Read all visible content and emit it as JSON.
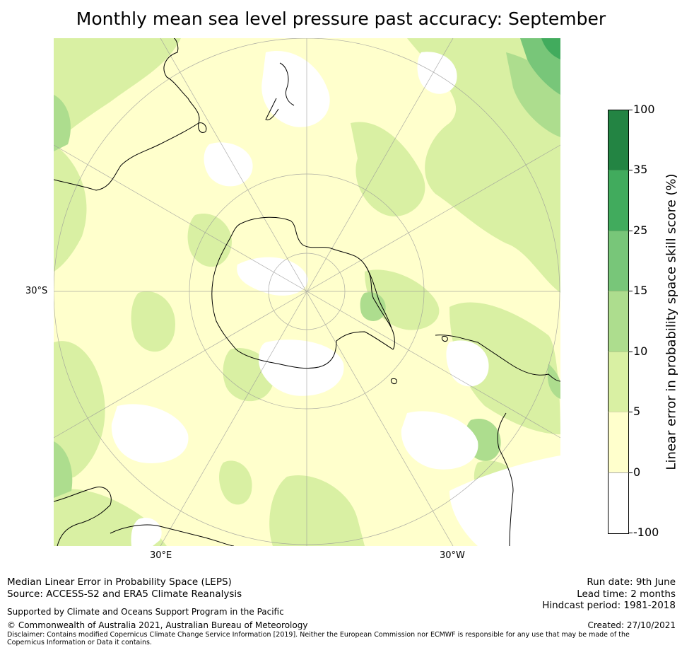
{
  "title": "Monthly mean sea level pressure past accuracy: September",
  "map": {
    "projection": "south-polar-stereographic",
    "labels": {
      "lat": "30°S",
      "lon_east": "30°E",
      "lon_west": "30°W"
    },
    "colors": {
      "ocean_low": "#ffffcc",
      "neutral": "#ffffff",
      "lvl_5_10": "#d9f0a3",
      "lvl_10_15": "#addd8e",
      "lvl_15_25": "#78c679",
      "lvl_25_35": "#41ab5d",
      "lvl_35_100": "#238443",
      "coast": "#000000",
      "grid": "#999999"
    }
  },
  "colorbar": {
    "title": "Linear error in probability space skill score (%)",
    "ticks": [
      "100",
      "35",
      "25",
      "15",
      "10",
      "5",
      "0",
      "-100"
    ],
    "segments": [
      {
        "range": "35-100",
        "color": "#238443"
      },
      {
        "range": "25-35",
        "color": "#41ab5d"
      },
      {
        "range": "15-25",
        "color": "#78c679"
      },
      {
        "range": "10-15",
        "color": "#addd8e"
      },
      {
        "range": "5-10",
        "color": "#d9f0a3"
      },
      {
        "range": "0-5",
        "color": "#ffffcc"
      },
      {
        "range": "-100-0",
        "color": "#ffffff"
      }
    ]
  },
  "footer": {
    "method": "Median Linear Error in Probability Space (LEPS)",
    "source": "Source: ACCESS-S2 and ERA5 Climate Reanalysis",
    "support": "Supported by Climate and Oceans Support Program in the Pacific",
    "copyright": "© Commonwealth of Australia 2021, Australian Bureau of Meteorology",
    "disclaimer": "Disclaimer: Contains modified Copernicus Climate Change Service Information [2019]. Neither the European Commission nor ECMWF is responsible for any use that may be made of the Copernicus Information or Data it contains.",
    "run_date": "Run date: 9th June",
    "lead_time": "Lead time: 2 months",
    "hindcast": "Hindcast period: 1981-2018",
    "created": "Created: 27/10/2021"
  }
}
